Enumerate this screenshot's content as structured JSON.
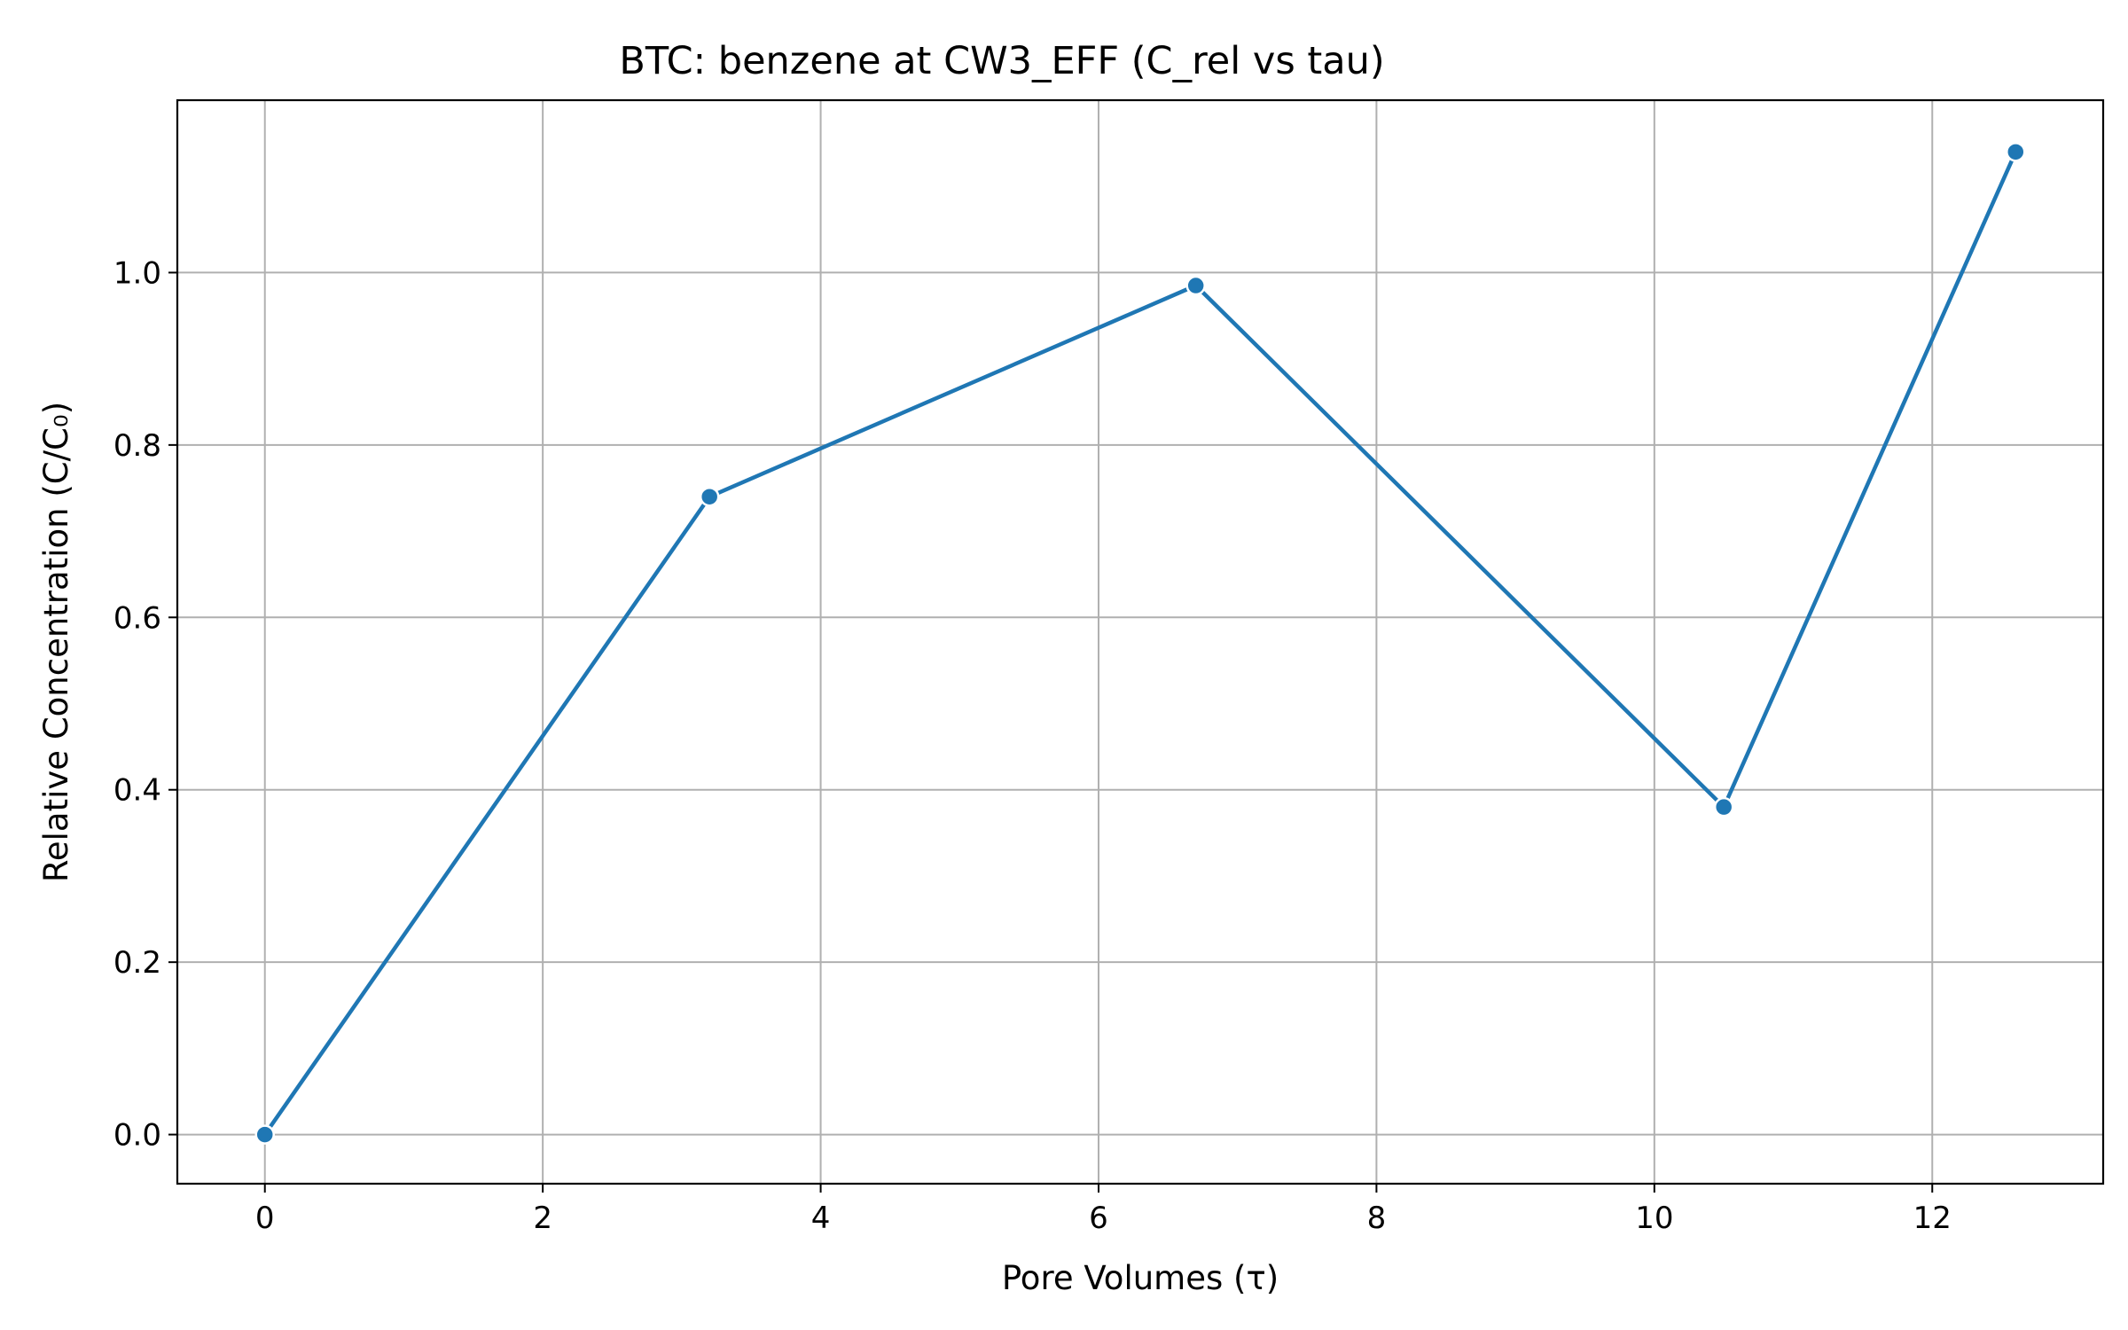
{
  "chart_data": {
    "type": "line",
    "title": "BTC: benzene at CW3_EFF (C_rel vs tau)",
    "xlabel": "Pore Volumes (τ)",
    "ylabel": "Relative Concentration (C/C₀)",
    "x": [
      0,
      3.2,
      6.7,
      10.5,
      12.6
    ],
    "series": [
      {
        "name": "",
        "values": [
          0.0,
          0.74,
          0.985,
          0.38,
          1.14
        ]
      }
    ],
    "xlim": [
      -0.63,
      13.23
    ],
    "ylim": [
      -0.057,
      1.2
    ],
    "xticks": [
      0,
      2,
      4,
      6,
      8,
      10,
      12
    ],
    "xtick_labels": [
      "0",
      "2",
      "4",
      "6",
      "8",
      "10",
      "12"
    ],
    "yticks": [
      0.0,
      0.2,
      0.4,
      0.6,
      0.8,
      1.0
    ],
    "ytick_labels": [
      "0.0",
      "0.2",
      "0.4",
      "0.6",
      "0.8",
      "1.0"
    ],
    "grid": true,
    "line_color": "#1f77b4",
    "grid_color": "#b0b0b0"
  }
}
